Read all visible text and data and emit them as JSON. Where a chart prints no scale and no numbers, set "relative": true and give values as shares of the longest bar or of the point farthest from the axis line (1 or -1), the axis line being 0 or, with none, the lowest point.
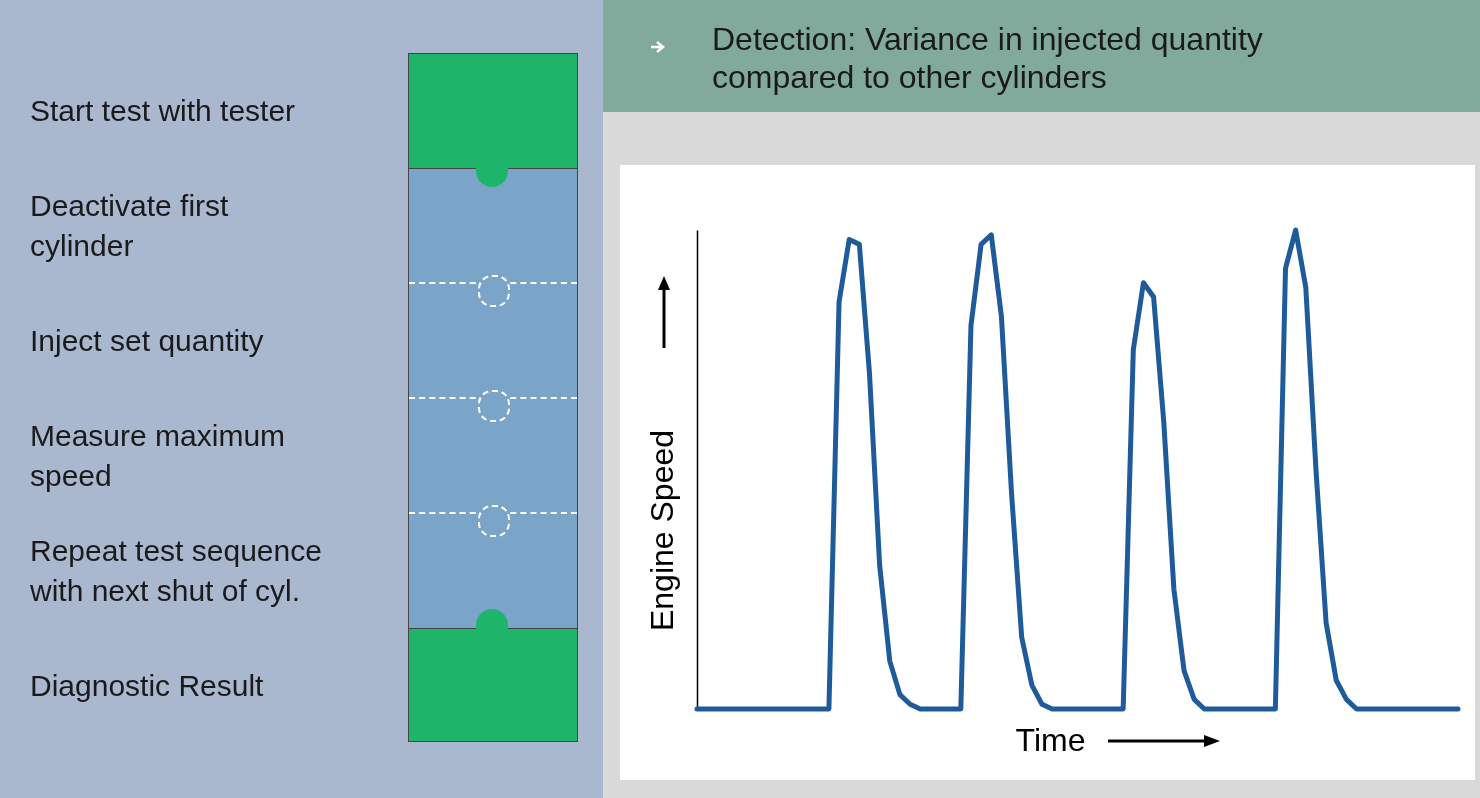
{
  "chart_data": [
    {
      "type": "other",
      "annotations": [
        "Start test with tester",
        "Deactivate first\ncylinder",
        "Inject set quantity",
        "Measure maximum\nspeed",
        "Repeat test sequence\nwith next shut of cyl.",
        "Diagnostic Result"
      ]
    },
    {
      "type": "line",
      "title": "Detection: Variance in injected quantity compared to other cylinders",
      "xlabel": "Time",
      "ylabel": "Engine Speed",
      "relative": true,
      "tick_labels": false,
      "color": "#1f5b9a",
      "categories": [
        null,
        null,
        null,
        null,
        null,
        null,
        null,
        null,
        null,
        null,
        null,
        null,
        null,
        null,
        null,
        null,
        null,
        null,
        null,
        null,
        null,
        null,
        null,
        null,
        null,
        null,
        null,
        null,
        null,
        null,
        null,
        null,
        null,
        null,
        null,
        null,
        null,
        null,
        null,
        null,
        null,
        null,
        null,
        null,
        null,
        null,
        null,
        null,
        null,
        null,
        null,
        null,
        null,
        null,
        null,
        null,
        null,
        null,
        null,
        null,
        null,
        null,
        null,
        null,
        null,
        null,
        null,
        null,
        null,
        null,
        null,
        null,
        null,
        null,
        null,
        null
      ],
      "values": [
        0,
        0,
        0,
        0,
        0,
        0,
        0,
        0,
        0,
        0,
        0,
        0,
        0,
        0,
        0.85,
        0.98,
        0.97,
        0.7,
        0.3,
        0.1,
        0.03,
        0.01,
        0,
        0,
        0,
        0,
        0,
        0.8,
        0.97,
        0.99,
        0.82,
        0.45,
        0.15,
        0.05,
        0.01,
        0,
        0,
        0,
        0,
        0,
        0,
        0,
        0,
        0.75,
        0.89,
        0.86,
        0.6,
        0.25,
        0.08,
        0.02,
        0,
        0,
        0,
        0,
        0,
        0,
        0,
        0,
        0.92,
        1,
        0.88,
        0.5,
        0.18,
        0.06,
        0.02,
        0,
        0,
        0,
        0,
        0,
        0,
        0,
        0,
        0,
        0,
        0
      ]
    }
  ]
}
